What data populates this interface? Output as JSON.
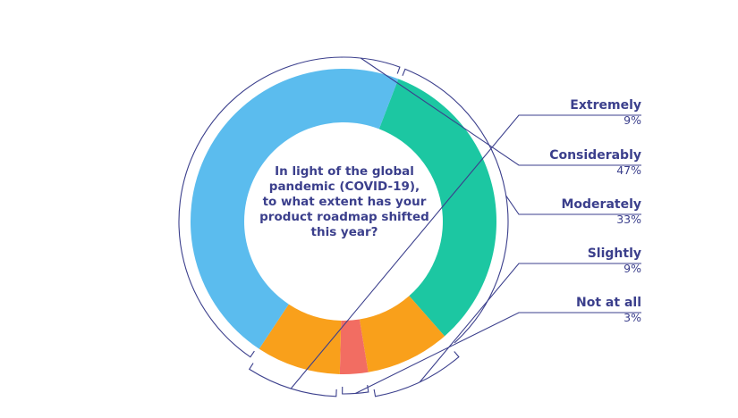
{
  "chart_data": {
    "type": "pie",
    "question": [
      "In light of the global",
      "pandemic (COVID-19),",
      "to what extent has your",
      "product roadmap shifted",
      "this year?"
    ],
    "categories": [
      "Extremely",
      "Considerably",
      "Moderately",
      "Slightly",
      "Not at all"
    ],
    "values": [
      9,
      47,
      33,
      9,
      3
    ],
    "value_labels": [
      "9%",
      "47%",
      "33%",
      "9%",
      "3%"
    ],
    "colors": {
      "Extremely": "#f9a01b",
      "Considerably": "#5bbcee",
      "Moderately": "#1cc7a2",
      "Slightly": "#f9a01b",
      "Not at all": "#f26d62"
    },
    "text_color": "#3b3f8c",
    "line_color": "#3b3f8c"
  }
}
